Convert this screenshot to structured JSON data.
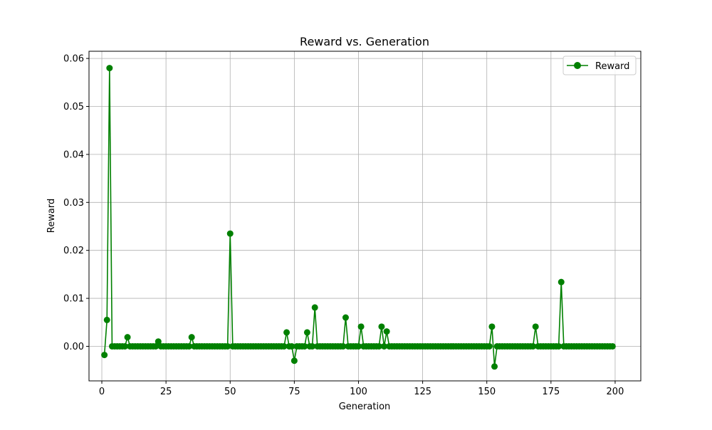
{
  "chart_data": {
    "type": "line",
    "title": "Reward vs. Generation",
    "xlabel": "Generation",
    "ylabel": "Reward",
    "xlim": [
      -5,
      210
    ],
    "ylim": [
      -0.0072,
      0.0615
    ],
    "xticks": [
      0,
      25,
      50,
      75,
      100,
      125,
      150,
      175,
      200
    ],
    "yticks": [
      0.0,
      0.01,
      0.02,
      0.03,
      0.04,
      0.05,
      0.06
    ],
    "ytick_labels": [
      "0.00",
      "0.01",
      "0.02",
      "0.03",
      "0.04",
      "0.05",
      "0.06"
    ],
    "grid": true,
    "legend": {
      "position": "top-right"
    },
    "series": [
      {
        "name": "Reward",
        "color": "#008000",
        "marker": "circle",
        "x_start": 1,
        "x_step": 1,
        "values": [
          -0.0018,
          0.0055,
          0.058,
          0,
          0,
          0,
          0,
          0,
          0,
          0.0019,
          0,
          0,
          0,
          0,
          0,
          0,
          0,
          0,
          0,
          0,
          0,
          0.001,
          0,
          0,
          0,
          0,
          0,
          0,
          0,
          0,
          0,
          0,
          0,
          0,
          0.0019,
          0,
          0,
          0,
          0,
          0,
          0,
          0,
          0,
          0,
          0,
          0,
          0,
          0,
          0,
          0.0235,
          0,
          0,
          0,
          0,
          0,
          0,
          0,
          0,
          0,
          0,
          0,
          0,
          0,
          0,
          0,
          0,
          0,
          0,
          0,
          0,
          0,
          0.0029,
          0,
          0,
          -0.003,
          0,
          0,
          0,
          0,
          0.0029,
          0,
          0,
          0.0081,
          0,
          0,
          0,
          0,
          0,
          0,
          0,
          0,
          0,
          0,
          0,
          0.006,
          0,
          0,
          0,
          0,
          0,
          0.0041,
          0,
          0,
          0,
          0,
          0,
          0,
          0,
          0.0041,
          0,
          0.0031,
          0,
          0,
          0,
          0,
          0,
          0,
          0,
          0,
          0,
          0,
          0,
          0,
          0,
          0,
          0,
          0,
          0,
          0,
          0,
          0,
          0,
          0,
          0,
          0,
          0,
          0,
          0,
          0,
          0,
          0,
          0,
          0,
          0,
          0,
          0,
          0,
          0,
          0,
          0,
          0,
          0.0041,
          -0.0042,
          0,
          0,
          0,
          0,
          0,
          0,
          0,
          0,
          0,
          0,
          0,
          0,
          0,
          0,
          0,
          0.0041,
          0,
          0,
          0,
          0,
          0,
          0,
          0,
          0,
          0,
          0.0134,
          0,
          0,
          0,
          0,
          0,
          0,
          0,
          0,
          0,
          0,
          0,
          0,
          0,
          0,
          0,
          0,
          0,
          0,
          0,
          0
        ]
      }
    ]
  }
}
